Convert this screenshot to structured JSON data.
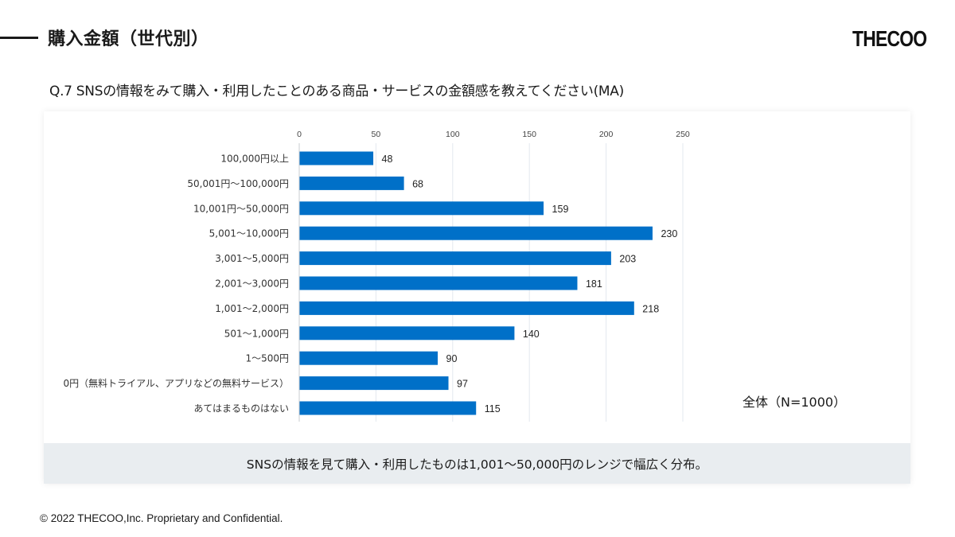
{
  "header": {
    "title": "購入金額（世代別）",
    "logo_text": "THECOO"
  },
  "question": "Q.7 SNSの情報をみて購入・利用したことのある商品・サービスの金額感を教えてください(MA)",
  "sample_label": "全体（N=1000）",
  "summary": "SNSの情報を見て購入・利用したものは1,001～50,000円のレンジで幅広く分布。",
  "footer": {
    "copyright": "© 2022 THECOO,Inc. Proprietary and Confidential."
  },
  "colors": {
    "bar": "#0070c8",
    "grid": "#e3e8ef",
    "summary_bg": "#e9edf0"
  },
  "chart_data": {
    "type": "bar",
    "orientation": "horizontal",
    "title": "",
    "xlabel": "",
    "ylabel": "",
    "xlim": [
      0,
      250
    ],
    "x_ticks": [
      0,
      50,
      100,
      150,
      200,
      250
    ],
    "x_tick_labels": [
      "0",
      "50",
      "100",
      "150",
      "200",
      "250"
    ],
    "x_axis_position": "top",
    "grid": true,
    "categories": [
      "100,000円以上",
      "50,001円～100,000円",
      "10,001円～50,000円",
      "5,001～10,000円",
      "3,001～5,000円",
      "2,001～3,000円",
      "1,001～2,000円",
      "501～1,000円",
      "1～500円",
      "0円（無料トライアル、アプリなどの無料サービス）",
      "あてはまるものはない"
    ],
    "values": [
      48,
      68,
      159,
      230,
      203,
      181,
      218,
      140,
      90,
      97,
      115
    ],
    "data_labels": [
      "48",
      "68",
      "159",
      "230",
      "203",
      "181",
      "218",
      "140",
      "90",
      "97",
      "115"
    ],
    "series": [
      {
        "name": "全体（N=1000）",
        "values": [
          48,
          68,
          159,
          230,
          203,
          181,
          218,
          140,
          90,
          97,
          115
        ]
      }
    ]
  }
}
